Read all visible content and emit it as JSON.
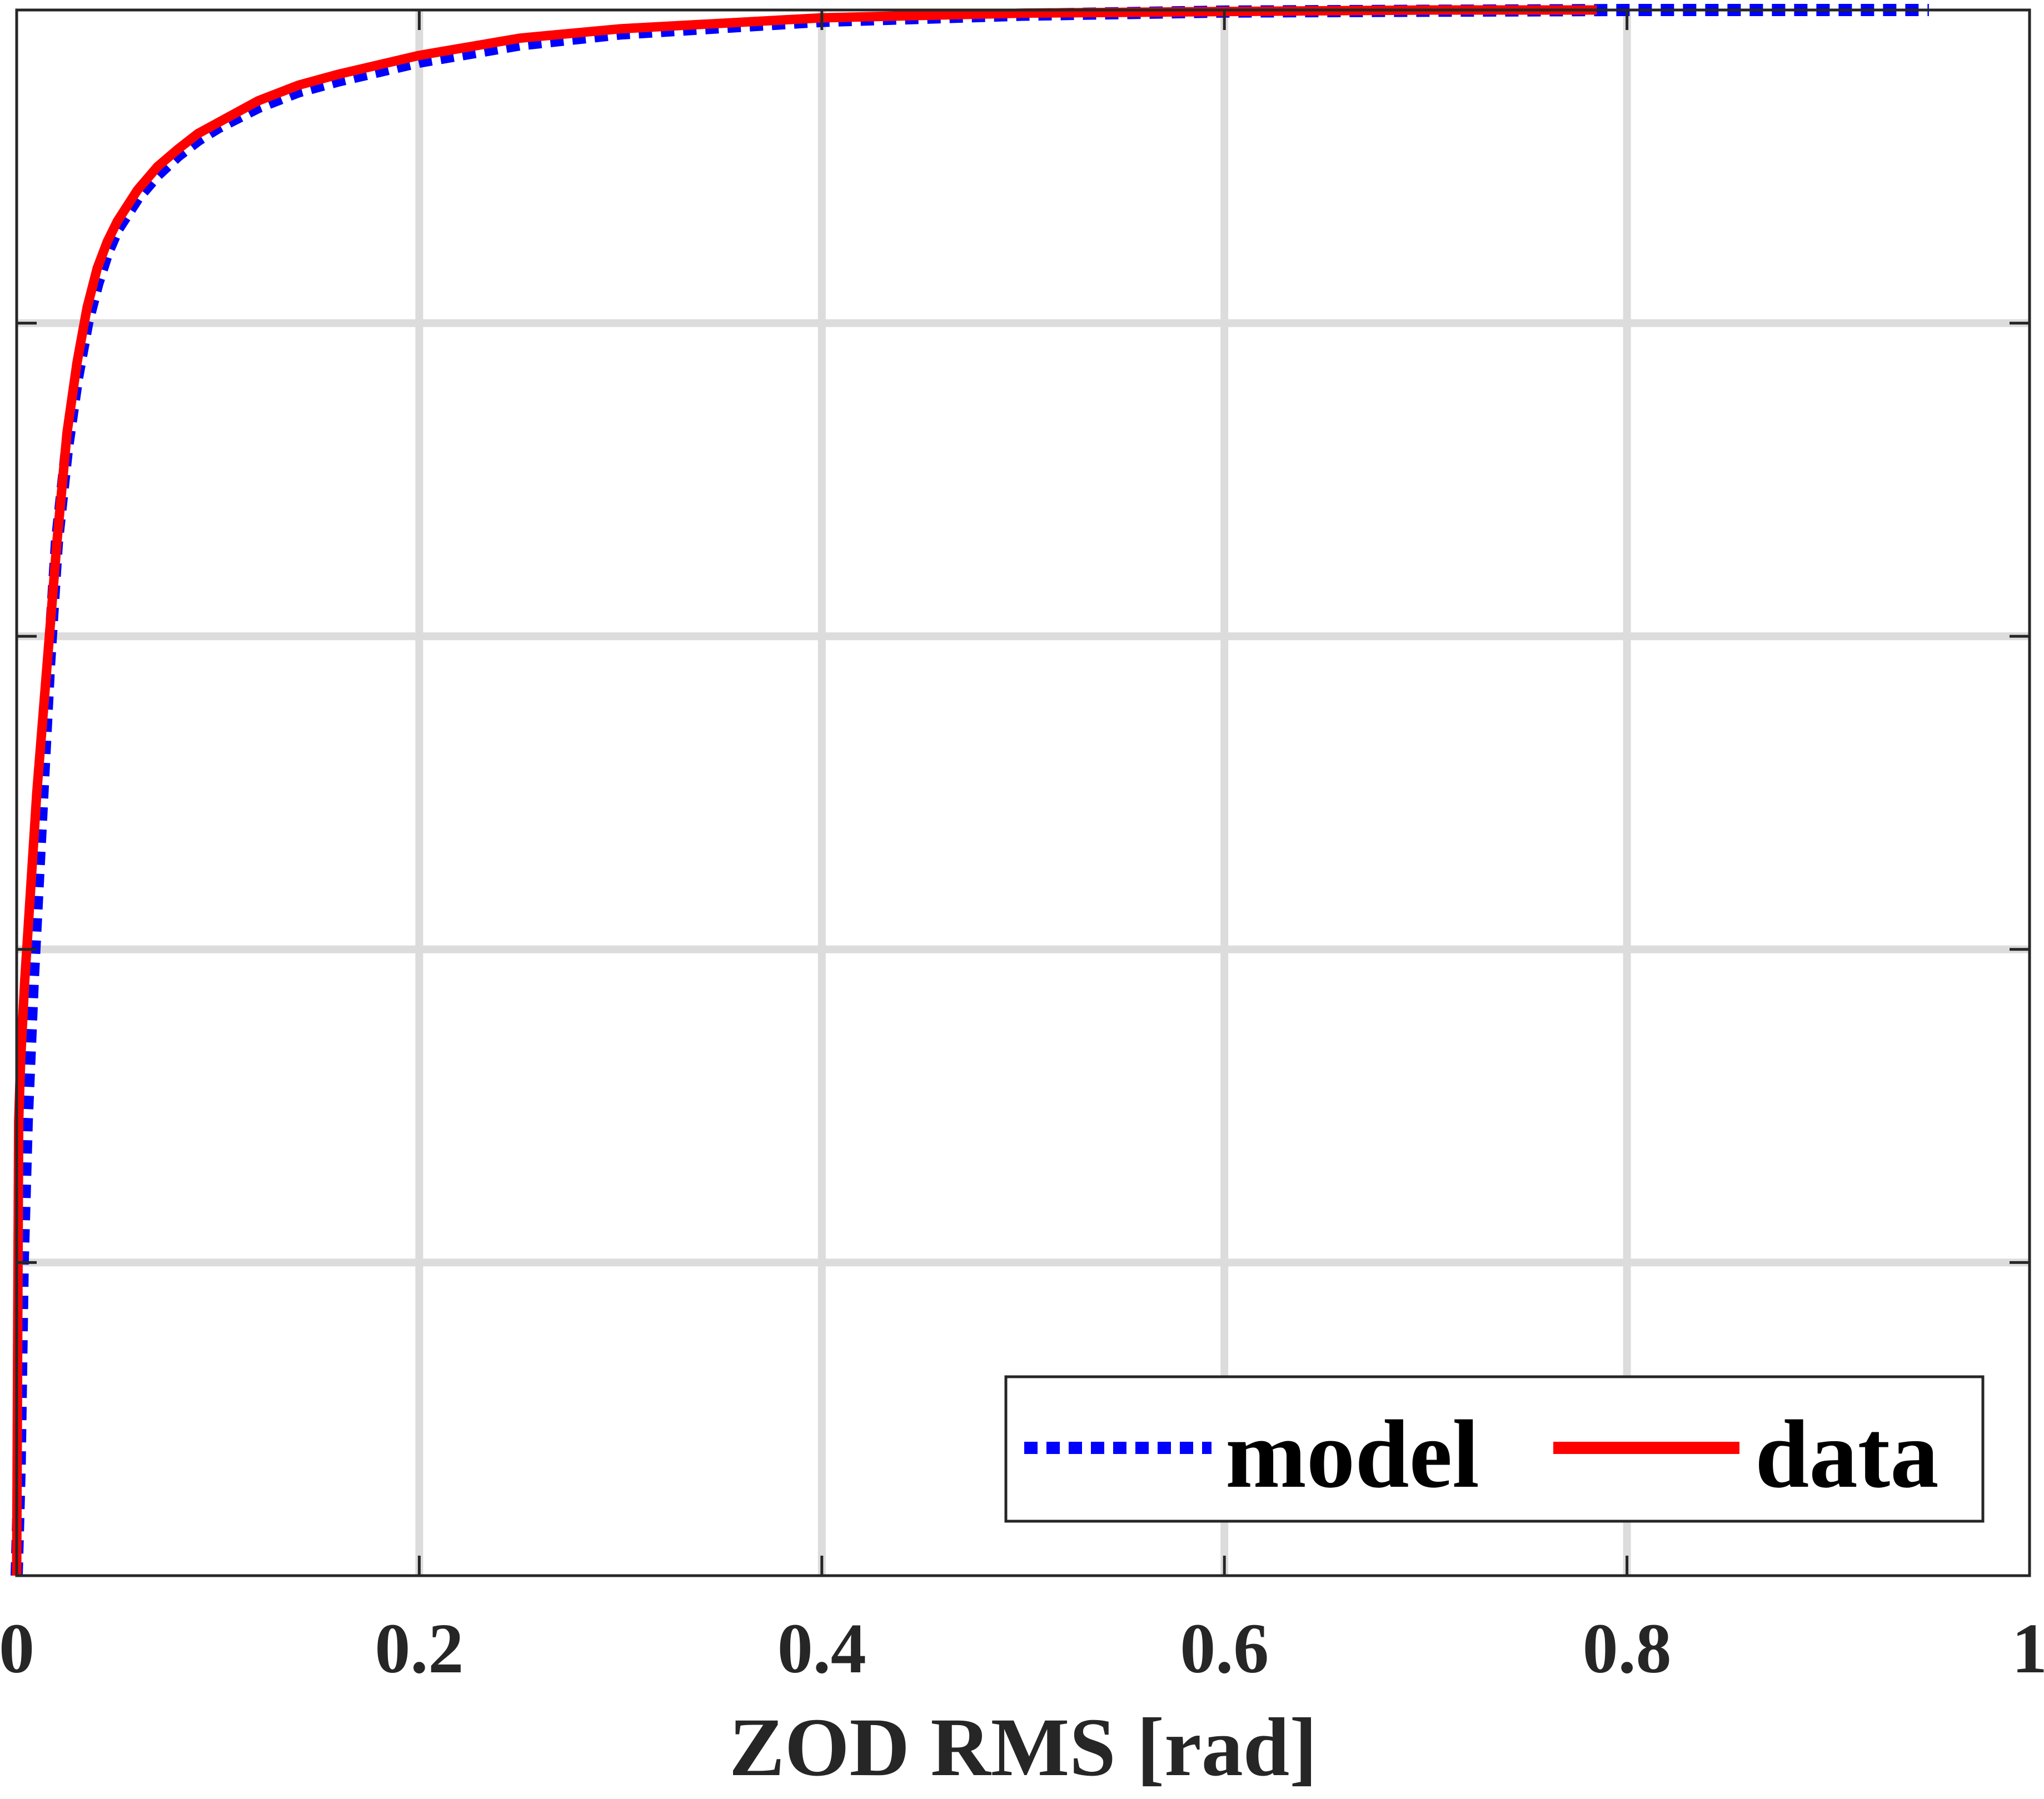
{
  "chart_data": {
    "type": "line",
    "title": "",
    "xlabel": "ZOD RMS [rad]",
    "ylabel": "",
    "xlim": [
      0,
      1
    ],
    "ylim": [
      0,
      1
    ],
    "x_ticks": [
      0,
      0.2,
      0.4,
      0.6,
      0.8,
      1
    ],
    "x_tick_labels": [
      "0",
      "0.2",
      "0.4",
      "0.6",
      "0.8",
      "1"
    ],
    "y_ticks": [
      0,
      0.2,
      0.4,
      0.6,
      0.8,
      1
    ],
    "y_tick_labels": [],
    "grid": true,
    "legend_position": "bottom-right",
    "legend_orientation": "horizontal",
    "series": [
      {
        "name": "model",
        "color": "#0000ff",
        "style": "dotted",
        "x": [
          0,
          0.0015,
          0.003,
          0.005,
          0.008,
          0.012,
          0.016,
          0.02,
          0.025,
          0.03,
          0.035,
          0.04,
          0.045,
          0.05,
          0.06,
          0.07,
          0.08,
          0.09,
          0.1,
          0.12,
          0.14,
          0.16,
          0.2,
          0.25,
          0.3,
          0.4,
          0.5,
          0.6,
          0.7,
          0.8,
          0.95
        ],
        "y": [
          0,
          0.07,
          0.2,
          0.29,
          0.38,
          0.48,
          0.58,
          0.66,
          0.72,
          0.765,
          0.8,
          0.825,
          0.845,
          0.86,
          0.88,
          0.895,
          0.907,
          0.917,
          0.925,
          0.938,
          0.948,
          0.955,
          0.967,
          0.978,
          0.985,
          0.993,
          0.997,
          0.999,
          0.9995,
          1.0,
          1.0
        ]
      },
      {
        "name": "data",
        "color": "#ff0000",
        "style": "solid",
        "x": [
          0,
          0.0005,
          0.001,
          0.002,
          0.004,
          0.007,
          0.01,
          0.015,
          0.02,
          0.025,
          0.03,
          0.035,
          0.04,
          0.045,
          0.05,
          0.06,
          0.07,
          0.08,
          0.09,
          0.1,
          0.12,
          0.14,
          0.16,
          0.2,
          0.25,
          0.3,
          0.4,
          0.5,
          0.6,
          0.7,
          0.785
        ],
        "y": [
          0,
          0.15,
          0.29,
          0.33,
          0.38,
          0.44,
          0.5,
          0.58,
          0.66,
          0.73,
          0.775,
          0.81,
          0.835,
          0.852,
          0.865,
          0.885,
          0.9,
          0.911,
          0.921,
          0.928,
          0.942,
          0.952,
          0.959,
          0.971,
          0.982,
          0.988,
          0.995,
          0.998,
          0.999,
          1.0,
          1.0
        ]
      }
    ]
  }
}
